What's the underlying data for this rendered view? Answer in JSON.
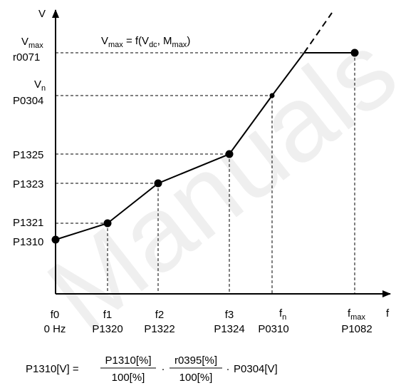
{
  "axes": {
    "y_label": "V",
    "x_label": "f"
  },
  "formula_top": {
    "v": "V",
    "v_sub": "max",
    "eq": " = f(V",
    "dc": "dc",
    "comma": ", M",
    "m_sub": "max",
    "close": ")"
  },
  "y_labels": {
    "vmax_v": "V",
    "vmax_sub": "max",
    "r0071": "r0071",
    "vn_v": "V",
    "vn_sub": "n",
    "p0304": "P0304",
    "p1325": "P1325",
    "p1323": "P1323",
    "p1321": "P1321",
    "p1310": "P1310"
  },
  "x_labels": {
    "f0": "f0",
    "f0_hz": "0 Hz",
    "f1": "f1",
    "p1320": "P1320",
    "f2": "f2",
    "p1322": "P1322",
    "f3": "f3",
    "p1324": "P1324",
    "fn_f": "f",
    "fn_sub": "n",
    "p0310": "P0310",
    "fmax_f": "f",
    "fmax_sub": "max",
    "p1082": "P1082"
  },
  "formula_bottom": {
    "lhs": "P1310[V] =",
    "num1": "P1310[%]",
    "den1": "100[%]",
    "dot1": "·",
    "num2": "r0395[%]",
    "den2": "100[%]",
    "dot2": "·",
    "tail": "P0304[V]"
  },
  "watermark": "Manuals"
}
